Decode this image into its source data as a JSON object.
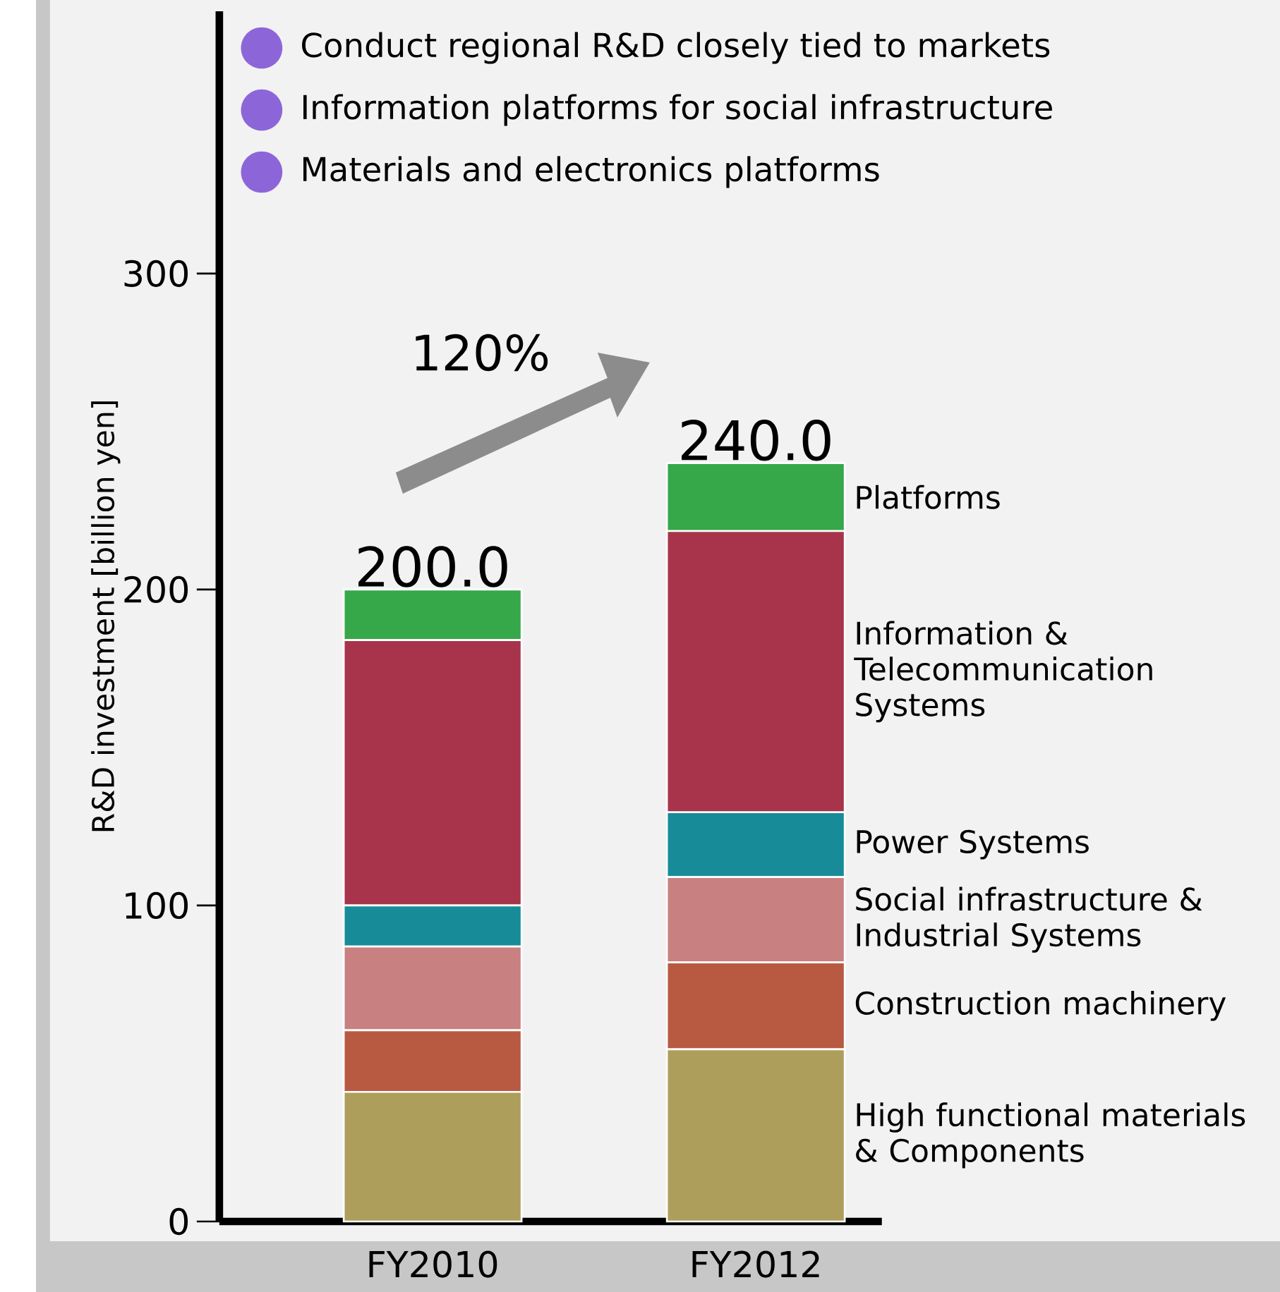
{
  "chart_data": {
    "type": "bar",
    "stacked": true,
    "ylabel": "R&D investment [billion yen]",
    "categories": [
      "FY2010",
      "FY2012"
    ],
    "ylim": [
      0,
      383
    ],
    "yticks": [
      0,
      100,
      200,
      300
    ],
    "series": [
      {
        "name": "High functional materials & Components",
        "color": "#ae9e5c",
        "values": [
          41,
          54.5
        ]
      },
      {
        "name": "Construction machinery",
        "color": "#b85a42",
        "values": [
          19.5,
          27.5
        ]
      },
      {
        "name": "Social infrastructure & Industrial Systems",
        "color": "#c88080",
        "values": [
          26.5,
          27
        ]
      },
      {
        "name": "Power Systems",
        "color": "#178c98",
        "values": [
          13,
          20.5
        ]
      },
      {
        "name": "Information & Telecommunication Systems",
        "color": "#a8344c",
        "values": [
          84,
          89
        ]
      },
      {
        "name": "Platforms",
        "color": "#36a84a",
        "values": [
          16,
          21.5
        ]
      }
    ],
    "totals": [
      "200.0",
      "240.0"
    ],
    "annotations": [
      "Conduct regional R&D closely tied to markets",
      "Information platforms for social infrastructure",
      "Materials and electronics platforms",
      {
        "text": "120%"
      }
    ]
  }
}
